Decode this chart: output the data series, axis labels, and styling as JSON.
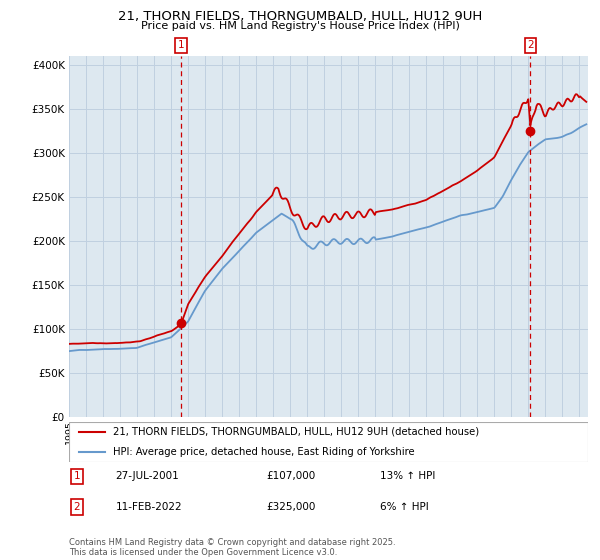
{
  "title_line1": "21, THORN FIELDS, THORNGUMBALD, HULL, HU12 9UH",
  "title_line2": "Price paid vs. HM Land Registry's House Price Index (HPI)",
  "ytick_values": [
    0,
    50000,
    100000,
    150000,
    200000,
    250000,
    300000,
    350000,
    400000
  ],
  "ylim": [
    0,
    410000
  ],
  "xlim_start": 1995.0,
  "xlim_end": 2025.5,
  "purchase1": {
    "date_label": "27-JUL-2001",
    "price": 107000,
    "hpi_diff": "13% ↑ HPI",
    "marker_x": 2001.57
  },
  "purchase2": {
    "date_label": "11-FEB-2022",
    "price": 325000,
    "hpi_diff": "6% ↑ HPI",
    "marker_x": 2022.12
  },
  "legend_label_red": "21, THORN FIELDS, THORNGUMBALD, HULL, HU12 9UH (detached house)",
  "legend_label_blue": "HPI: Average price, detached house, East Riding of Yorkshire",
  "footnote": "Contains HM Land Registry data © Crown copyright and database right 2025.\nThis data is licensed under the Open Government Licence v3.0.",
  "red_color": "#cc0000",
  "blue_color": "#6699cc",
  "plot_bg_color": "#dde8f0",
  "bg_color": "#ffffff",
  "grid_color": "#c0d0e0",
  "vline_color": "#cc0000"
}
